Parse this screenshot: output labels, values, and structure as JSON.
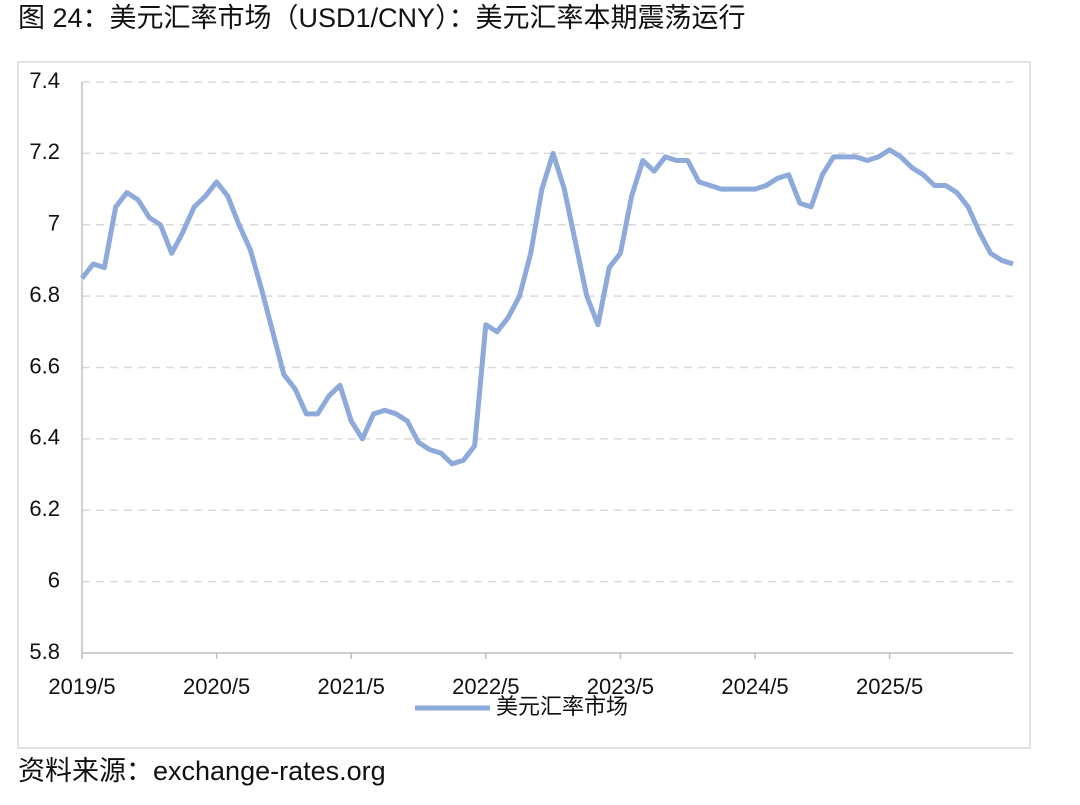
{
  "chart_data": {
    "type": "line",
    "title": "图 24：美元汇率市场（USD1/CNY）：美元汇率本期震荡运行",
    "source": "资料来源：exchange-rates.org",
    "x": [
      "2019/5",
      "2019/6",
      "2019/7",
      "2019/8",
      "2019/9",
      "2019/10",
      "2019/11",
      "2019/12",
      "2020/1",
      "2020/2",
      "2020/3",
      "2020/4",
      "2020/5",
      "2020/6",
      "2020/7",
      "2020/8",
      "2020/9",
      "2020/10",
      "2020/11",
      "2020/12",
      "2021/1",
      "2021/2",
      "2021/3",
      "2021/4",
      "2021/5",
      "2021/6",
      "2021/7",
      "2021/8",
      "2021/9",
      "2021/10",
      "2021/11",
      "2021/12",
      "2022/1",
      "2022/2",
      "2022/3",
      "2022/4",
      "2022/5",
      "2022/6",
      "2022/7",
      "2022/8",
      "2022/9",
      "2022/10",
      "2022/11",
      "2022/12",
      "2023/1",
      "2023/2",
      "2023/3",
      "2023/4",
      "2023/5",
      "2023/6",
      "2023/7",
      "2023/8",
      "2023/9",
      "2023/10",
      "2023/11",
      "2023/12",
      "2024/1",
      "2024/2",
      "2024/3",
      "2024/4",
      "2024/5",
      "2024/6",
      "2024/7",
      "2024/8",
      "2024/9",
      "2024/10",
      "2024/11",
      "2024/12",
      "2025/1",
      "2025/2",
      "2025/3",
      "2025/4",
      "2025/5",
      "2025/6",
      "2025/7",
      "2025/8",
      "2025/9",
      "2025/10",
      "2025/11",
      "2025/12",
      "2026/1",
      "2026/2",
      "2026/3",
      "2026/4"
    ],
    "series": [
      {
        "name": "美元汇率市场",
        "color": "#8eaadb",
        "values": [
          6.85,
          6.89,
          6.88,
          7.05,
          7.09,
          7.07,
          7.02,
          7.0,
          6.92,
          6.98,
          7.05,
          7.08,
          7.12,
          7.08,
          7.0,
          6.93,
          6.82,
          6.7,
          6.58,
          6.54,
          6.47,
          6.47,
          6.52,
          6.55,
          6.45,
          6.4,
          6.47,
          6.48,
          6.47,
          6.45,
          6.39,
          6.37,
          6.36,
          6.33,
          6.34,
          6.38,
          6.72,
          6.7,
          6.74,
          6.8,
          6.92,
          7.1,
          7.2,
          7.1,
          6.95,
          6.8,
          6.72,
          6.88,
          6.92,
          7.08,
          7.18,
          7.15,
          7.19,
          7.18,
          7.18,
          7.12,
          7.11,
          7.1,
          7.1,
          7.1,
          7.1,
          7.11,
          7.13,
          7.14,
          7.06,
          7.05,
          7.14,
          7.19,
          7.19,
          7.19,
          7.18,
          7.19,
          7.21,
          7.19,
          7.16,
          7.14,
          7.11,
          7.11,
          7.09,
          7.05,
          6.98,
          6.92,
          6.9,
          6.89
        ]
      }
    ],
    "xlim": [
      "2019/5",
      "2026/4"
    ],
    "xticks": [
      "2019/5",
      "2020/5",
      "2021/5",
      "2022/5",
      "2023/5",
      "2024/5",
      "2025/5"
    ],
    "ylim": [
      5.8,
      7.4
    ],
    "yticks": [
      5.8,
      6,
      6.2,
      6.4,
      6.6,
      6.8,
      7,
      7.2,
      7.4
    ],
    "grid": true,
    "legend": "bottom"
  }
}
